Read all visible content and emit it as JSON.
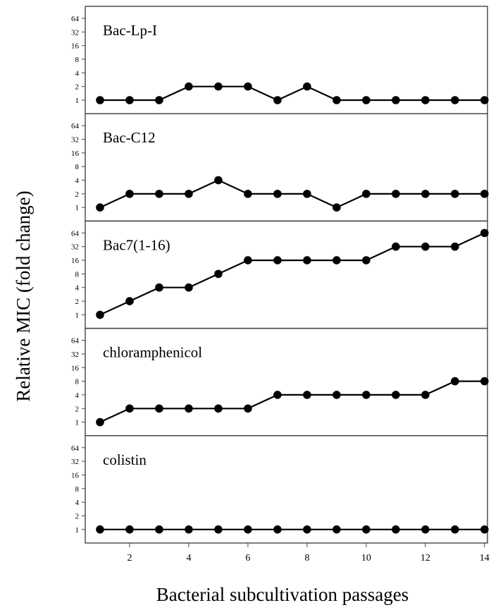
{
  "chart_data": {
    "type": "line",
    "ylabel": "Relative MIC (fold change)",
    "xlabel": "Bacterial subcultivation passages",
    "x": [
      1,
      2,
      3,
      4,
      5,
      6,
      7,
      8,
      9,
      10,
      11,
      12,
      13,
      14
    ],
    "xlim": [
      0.5,
      14.1
    ],
    "x_ticks": [
      "2",
      "4",
      "6",
      "8",
      "10",
      "12",
      "14"
    ],
    "y_ticks": [
      "1",
      "2",
      "4",
      "8",
      "16",
      "32",
      "64"
    ],
    "y_scale": "log2",
    "ylim": [
      1,
      64
    ],
    "grid": false,
    "panels": [
      {
        "title": "Bac-Lp-I",
        "values": [
          1,
          1,
          1,
          2,
          2,
          2,
          1,
          2,
          1,
          1,
          1,
          1,
          1,
          1
        ]
      },
      {
        "title": "Bac-C12",
        "values": [
          1,
          2,
          2,
          2,
          4,
          2,
          2,
          2,
          1,
          2,
          2,
          2,
          2,
          2
        ]
      },
      {
        "title": "Bac7(1-16)",
        "values": [
          1,
          2,
          4,
          4,
          8,
          16,
          16,
          16,
          16,
          16,
          32,
          32,
          32,
          64
        ]
      },
      {
        "title": "chloramphenicol",
        "values": [
          1,
          2,
          2,
          2,
          2,
          2,
          4,
          4,
          4,
          4,
          4,
          4,
          8,
          8
        ]
      },
      {
        "title": "colistin",
        "values": [
          1,
          1,
          1,
          1,
          1,
          1,
          1,
          1,
          1,
          1,
          1,
          1,
          1,
          1
        ]
      }
    ]
  },
  "colors": {
    "line": "#000000",
    "marker": "#000000",
    "frame": "#444444"
  }
}
